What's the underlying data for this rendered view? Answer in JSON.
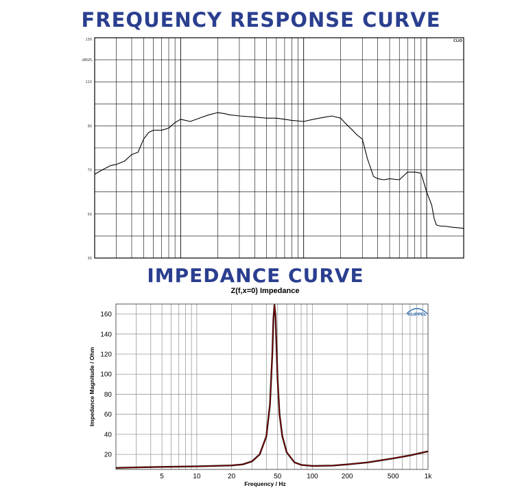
{
  "headings": {
    "frequency": "FREQUENCY RESPONSE CURVE",
    "impedance": "IMPEDANCE CURVE"
  },
  "chart_data": [
    {
      "type": "line",
      "title": "FREQUENCY RESPONSE CURVE",
      "y_unit": "dBSPL",
      "corner_label": "CLIO",
      "x_scale": "log",
      "xlim": [
        20,
        20000
      ],
      "ylim": [
        30,
        130
      ],
      "y_ticks": [
        30,
        50,
        70,
        90,
        110,
        130
      ],
      "grid": true,
      "line_color": "#000000",
      "x": [
        20,
        23,
        27,
        30,
        35,
        40,
        45,
        50,
        55,
        60,
        70,
        80,
        90,
        100,
        120,
        150,
        170,
        200,
        230,
        250,
        300,
        400,
        500,
        600,
        700,
        800,
        1000,
        1200,
        1500,
        1700,
        2000,
        2200,
        2500,
        2700,
        3000,
        3300,
        3700,
        4000,
        4500,
        5000,
        6000,
        7000,
        8000,
        9000,
        10000,
        11000,
        11500,
        12000,
        13000,
        14000,
        16000,
        20000
      ],
      "y": [
        68,
        70,
        72,
        72.5,
        74,
        77,
        78,
        84,
        87,
        88,
        88,
        89,
        91.5,
        93,
        92,
        94,
        95,
        96,
        95.5,
        95,
        94.5,
        94,
        93.5,
        93.5,
        93,
        92.5,
        92,
        93,
        94,
        94.5,
        93.5,
        91,
        88,
        86,
        84,
        75,
        67,
        66,
        65.5,
        66,
        65.5,
        69,
        69,
        68.5,
        60,
        54,
        48,
        45,
        44.5,
        44.5,
        44,
        43.5
      ]
    },
    {
      "type": "line",
      "title": "Z(f,x=0) Impedance",
      "xlabel": "Frequency / Hz",
      "ylabel": "Impedance Magnitude / Ohm",
      "logo": "KLIPPEL",
      "x_scale": "log",
      "xlim": [
        2,
        1000
      ],
      "ylim": [
        5,
        170
      ],
      "x_ticks": [
        5,
        10,
        20,
        50,
        100,
        200,
        500,
        1000
      ],
      "x_tick_labels": [
        "5",
        "10",
        "20",
        "50",
        "100",
        "200",
        "500",
        "1k"
      ],
      "y_ticks": [
        20,
        40,
        60,
        80,
        100,
        120,
        140,
        160
      ],
      "grid": true,
      "line_color": "#8b0000",
      "x": [
        2,
        3,
        5,
        10,
        20,
        25,
        30,
        35,
        40,
        43,
        45,
        46,
        47,
        48,
        49,
        50,
        52,
        55,
        60,
        70,
        80,
        100,
        150,
        200,
        300,
        500,
        700,
        1000
      ],
      "y": [
        6.5,
        7,
        7.5,
        8,
        9,
        10,
        13,
        20,
        38,
        70,
        120,
        155,
        169,
        158,
        125,
        95,
        60,
        38,
        22,
        12,
        9.5,
        8.5,
        8.8,
        10,
        12,
        16,
        19,
        23
      ]
    }
  ]
}
